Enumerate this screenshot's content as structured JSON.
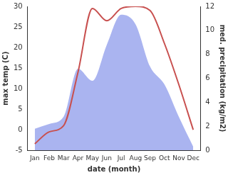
{
  "chart_data": {
    "type": "line",
    "x_label": "date (month)",
    "y_label": "max temp (C)",
    "y2_label": "med. precipitation (kg/m2)",
    "categories": [
      "Jan",
      "Feb",
      "Mar",
      "Apr",
      "May",
      "Jun",
      "Jul",
      "Aug",
      "Sep",
      "Oct",
      "Nov",
      "Dec"
    ],
    "series": [
      {
        "name": "med. precipitation",
        "type": "area",
        "color": "#aab4f0",
        "axis": "y2",
        "values": [
          1.8,
          2.2,
          2.8,
          6.8,
          5.8,
          8.8,
          11.3,
          10.5,
          7.0,
          5.5,
          2.8,
          0.3
        ]
      },
      {
        "name": "max temp",
        "type": "line",
        "color": "#c8504f",
        "axis": "y",
        "values": [
          -3.4,
          -0.5,
          1.0,
          14.0,
          29.5,
          26.5,
          29.5,
          30.0,
          29.0,
          21.0,
          11.0,
          0.0
        ]
      }
    ],
    "ylim": [
      -5,
      30
    ],
    "yticks": [
      -5,
      0,
      5,
      10,
      15,
      20,
      25,
      30
    ],
    "y2lim": [
      0,
      12
    ],
    "y2ticks": [
      0,
      2,
      4,
      6,
      8,
      10,
      12
    ],
    "grid": false
  }
}
